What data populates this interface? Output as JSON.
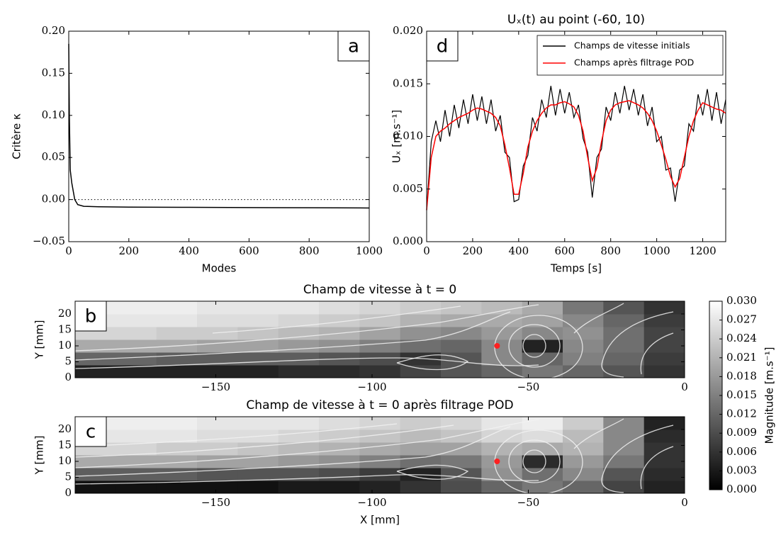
{
  "chart_data": [
    {
      "type": "line",
      "panel": "a",
      "xlabel": "Modes",
      "ylabel": "Critère κ",
      "x": [
        0,
        2,
        5,
        10,
        20,
        30,
        50,
        100,
        200,
        400,
        600,
        800,
        1000
      ],
      "series": [
        {
          "color": "#000000",
          "values": [
            0.185,
            0.1,
            0.035,
            0.02,
            0.0,
            -0.006,
            -0.008,
            -0.0085,
            -0.009,
            -0.0092,
            -0.0095,
            -0.0097,
            -0.01
          ]
        }
      ],
      "hline": 0,
      "xlim": [
        0,
        1000
      ],
      "xticks": [
        0,
        200,
        400,
        600,
        800,
        1000
      ],
      "ylim": [
        -0.05,
        0.2
      ],
      "yticks": [
        {
          "value": -0.05,
          "label": "−0.05"
        },
        {
          "value": 0,
          "label": "0.00"
        },
        0.05,
        {
          "value": 0.1,
          "label": "0.10"
        },
        0.15,
        {
          "value": 0.2,
          "label": "0.20"
        }
      ]
    },
    {
      "type": "line",
      "panel": "d",
      "title": "Uₓ(t) au point (-60, 10)",
      "xlabel": "Temps [s]",
      "ylabel": "Uₓ [m.s⁻¹]",
      "x": [
        0,
        20,
        40,
        60,
        80,
        100,
        120,
        140,
        160,
        180,
        200,
        220,
        240,
        260,
        280,
        300,
        320,
        340,
        360,
        380,
        400,
        420,
        440,
        460,
        480,
        500,
        520,
        540,
        560,
        580,
        600,
        620,
        640,
        660,
        680,
        700,
        720,
        740,
        760,
        780,
        800,
        820,
        840,
        860,
        880,
        900,
        920,
        940,
        960,
        980,
        1000,
        1020,
        1040,
        1060,
        1080,
        1100,
        1120,
        1140,
        1160,
        1180,
        1200,
        1220,
        1240,
        1260,
        1280,
        1300
      ],
      "series": [
        {
          "name": "Champs de vitesse initials",
          "color": "#000000",
          "values": [
            0.003,
            0.0095,
            0.0115,
            0.0095,
            0.0125,
            0.01,
            0.013,
            0.0108,
            0.0135,
            0.0112,
            0.014,
            0.0115,
            0.0138,
            0.0112,
            0.0135,
            0.0105,
            0.012,
            0.0085,
            0.008,
            0.0038,
            0.004,
            0.0072,
            0.0082,
            0.0118,
            0.0105,
            0.0135,
            0.0118,
            0.0148,
            0.012,
            0.0145,
            0.0122,
            0.0142,
            0.0118,
            0.013,
            0.0098,
            0.0085,
            0.0042,
            0.008,
            0.0088,
            0.0128,
            0.0115,
            0.0142,
            0.0122,
            0.0148,
            0.0125,
            0.0145,
            0.012,
            0.014,
            0.011,
            0.0128,
            0.0095,
            0.01,
            0.0068,
            0.007,
            0.0038,
            0.0068,
            0.0072,
            0.0112,
            0.0105,
            0.014,
            0.012,
            0.0145,
            0.0115,
            0.0142,
            0.0112,
            0.0135
          ]
        },
        {
          "name": "Champs après filtrage POD",
          "color": "#ff0000",
          "values": [
            0.003,
            0.008,
            0.01,
            0.0105,
            0.0108,
            0.0112,
            0.0115,
            0.0118,
            0.012,
            0.0122,
            0.0125,
            0.0127,
            0.0126,
            0.0124,
            0.0122,
            0.0118,
            0.011,
            0.0092,
            0.007,
            0.0045,
            0.0045,
            0.0065,
            0.009,
            0.0105,
            0.0115,
            0.0122,
            0.0127,
            0.013,
            0.013,
            0.0132,
            0.0133,
            0.0131,
            0.0128,
            0.012,
            0.0105,
            0.008,
            0.0058,
            0.007,
            0.0095,
            0.0115,
            0.0125,
            0.013,
            0.0132,
            0.0133,
            0.0134,
            0.0132,
            0.013,
            0.0127,
            0.0122,
            0.0115,
            0.0105,
            0.0092,
            0.0078,
            0.0062,
            0.0052,
            0.006,
            0.008,
            0.01,
            0.0115,
            0.0125,
            0.0132,
            0.013,
            0.0128,
            0.0126,
            0.0125,
            0.0122
          ]
        }
      ],
      "legend": "upper right",
      "xlim": [
        0,
        1300
      ],
      "xticks": [
        0,
        200,
        400,
        600,
        800,
        1000,
        1200
      ],
      "ylim": [
        0,
        0.02
      ],
      "yticks": [
        {
          "value": 0,
          "label": "0.000"
        },
        0.005,
        {
          "value": 0.01,
          "label": "0.010"
        },
        0.015,
        {
          "value": 0.02,
          "label": "0.020"
        }
      ]
    },
    {
      "type": "heatmap",
      "panel": "b",
      "title": "Champ de vitesse à t = 0",
      "ylabel": "Y [mm]",
      "xbins": [
        -195,
        -182,
        -169,
        -156,
        -143,
        -130,
        -117,
        -104,
        -91,
        -78,
        -65,
        -52,
        -39,
        -26,
        -13,
        0
      ],
      "ybins": [
        0,
        4,
        8,
        12,
        16,
        20,
        24
      ],
      "z": [
        [
          0.004,
          0.004,
          0.004,
          0.004,
          0.004,
          0.005,
          0.005,
          0.006,
          0.008,
          0.01,
          0.012,
          0.014,
          0.012,
          0.01,
          0.006
        ],
        [
          0.012,
          0.012,
          0.011,
          0.011,
          0.011,
          0.011,
          0.01,
          0.009,
          0.006,
          0.01,
          0.016,
          0.012,
          0.015,
          0.012,
          0.007
        ],
        [
          0.02,
          0.02,
          0.02,
          0.019,
          0.019,
          0.018,
          0.017,
          0.015,
          0.013,
          0.012,
          0.016,
          0.004,
          0.016,
          0.013,
          0.008
        ],
        [
          0.025,
          0.025,
          0.024,
          0.024,
          0.023,
          0.022,
          0.021,
          0.019,
          0.017,
          0.016,
          0.018,
          0.016,
          0.017,
          0.013,
          0.008
        ],
        [
          0.027,
          0.027,
          0.027,
          0.026,
          0.026,
          0.025,
          0.024,
          0.023,
          0.021,
          0.02,
          0.02,
          0.019,
          0.016,
          0.012,
          0.007
        ],
        [
          0.028,
          0.028,
          0.028,
          0.027,
          0.027,
          0.027,
          0.026,
          0.025,
          0.024,
          0.023,
          0.022,
          0.02,
          0.014,
          0.01,
          0.006
        ]
      ],
      "point": {
        "x": -60,
        "y": 10,
        "color": "#ff2020"
      },
      "xlim": [
        -195,
        0
      ],
      "xticks": [
        {
          "value": -150,
          "label": "−150"
        },
        {
          "value": -100,
          "label": "−100"
        },
        {
          "value": -50,
          "label": "−50"
        },
        0
      ],
      "ylim": [
        0,
        24
      ],
      "yticks": [
        0,
        5,
        10,
        15,
        20
      ]
    },
    {
      "type": "heatmap",
      "panel": "c",
      "title": "Champ de vitesse à t = 0 après filtrage POD",
      "xlabel": "X [mm]",
      "ylabel": "Y [mm]",
      "xbins": [
        -195,
        -182,
        -169,
        -156,
        -143,
        -130,
        -117,
        -104,
        -91,
        -78,
        -65,
        -52,
        -39,
        -26,
        -13,
        0
      ],
      "ybins": [
        0,
        4,
        8,
        12,
        16,
        20,
        24
      ],
      "z": [
        [
          0.002,
          0.002,
          0.002,
          0.002,
          0.002,
          0.003,
          0.003,
          0.004,
          0.006,
          0.009,
          0.012,
          0.014,
          0.012,
          0.008,
          0.004
        ],
        [
          0.011,
          0.011,
          0.011,
          0.01,
          0.01,
          0.01,
          0.009,
          0.007,
          0.004,
          0.01,
          0.017,
          0.013,
          0.016,
          0.01,
          0.005
        ],
        [
          0.02,
          0.02,
          0.02,
          0.019,
          0.019,
          0.018,
          0.017,
          0.015,
          0.013,
          0.014,
          0.018,
          0.005,
          0.018,
          0.014,
          0.006
        ],
        [
          0.025,
          0.025,
          0.024,
          0.024,
          0.023,
          0.022,
          0.021,
          0.02,
          0.019,
          0.019,
          0.021,
          0.02,
          0.021,
          0.016,
          0.006
        ],
        [
          0.027,
          0.027,
          0.027,
          0.026,
          0.026,
          0.025,
          0.024,
          0.023,
          0.022,
          0.023,
          0.025,
          0.026,
          0.022,
          0.016,
          0.005
        ],
        [
          0.028,
          0.028,
          0.028,
          0.027,
          0.027,
          0.027,
          0.026,
          0.025,
          0.024,
          0.025,
          0.027,
          0.028,
          0.024,
          0.016,
          0.004
        ]
      ],
      "point": {
        "x": -60,
        "y": 10,
        "color": "#ff2020"
      },
      "xlim": [
        -195,
        0
      ],
      "xticks": [
        {
          "value": -150,
          "label": "−150"
        },
        {
          "value": -100,
          "label": "−100"
        },
        {
          "value": -50,
          "label": "−50"
        },
        0
      ],
      "ylim": [
        0,
        24
      ],
      "yticks": [
        0,
        5,
        10,
        15,
        20
      ]
    },
    {
      "type": "colorbar",
      "label": "Magnitude [m.s⁻¹]",
      "ylim": [
        0,
        0.03
      ],
      "yticks": [
        {
          "value": 0,
          "label": "0.000"
        },
        0.003,
        0.006,
        0.009,
        0.012,
        0.015,
        0.018,
        0.021,
        0.024,
        0.027,
        {
          "value": 0.03,
          "label": "0.030"
        }
      ]
    }
  ]
}
